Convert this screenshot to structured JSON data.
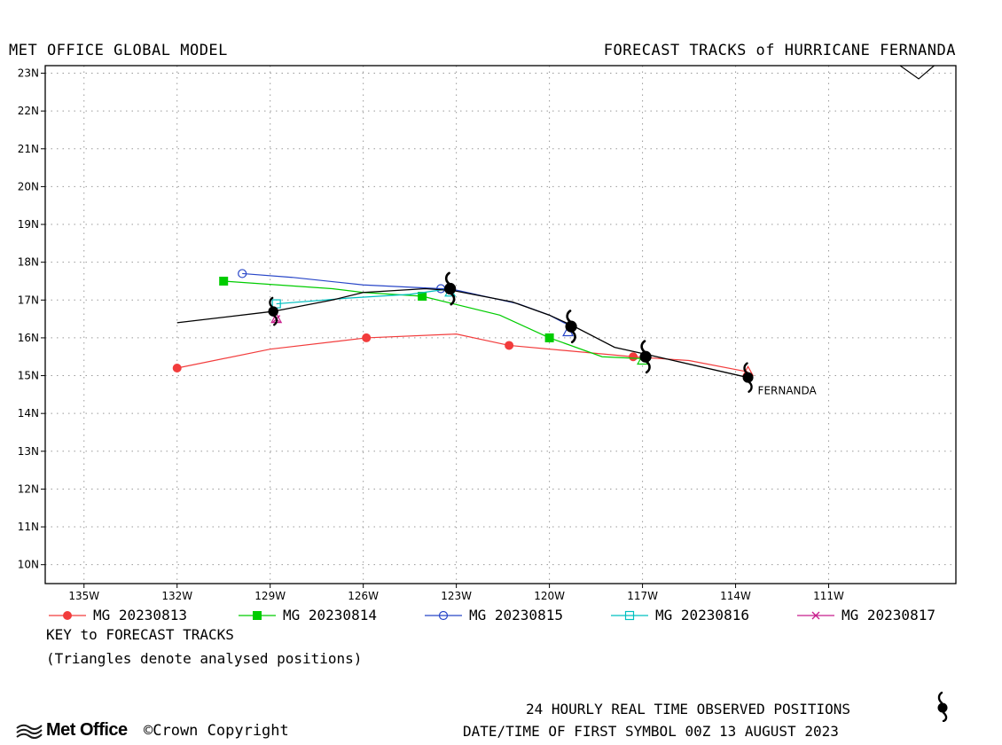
{
  "header": {
    "left": "MET OFFICE GLOBAL MODEL",
    "right": "FORECAST TRACKS of HURRICANE FERNANDA"
  },
  "map": {
    "lon_range": [
      -136.25,
      -106.9
    ],
    "lat_range": [
      9.5,
      23.2
    ],
    "grid": "dotted",
    "storm_label": "FERNANDA",
    "lon_ticks": [
      {
        "lon": -135,
        "label": "135W"
      },
      {
        "lon": -132,
        "label": "132W"
      },
      {
        "lon": -129,
        "label": "129W"
      },
      {
        "lon": -126,
        "label": "126W"
      },
      {
        "lon": -123,
        "label": "123W"
      },
      {
        "lon": -120,
        "label": "120W"
      },
      {
        "lon": -117,
        "label": "117W"
      },
      {
        "lon": -114,
        "label": "114W"
      },
      {
        "lon": -111,
        "label": "111W"
      }
    ],
    "lat_ticks": [
      {
        "lat": 10,
        "label": "10N"
      },
      {
        "lat": 11,
        "label": "11N"
      },
      {
        "lat": 12,
        "label": "12N"
      },
      {
        "lat": 13,
        "label": "13N"
      },
      {
        "lat": 14,
        "label": "14N"
      },
      {
        "lat": 15,
        "label": "15N"
      },
      {
        "lat": 16,
        "label": "16N"
      },
      {
        "lat": 17,
        "label": "17N"
      },
      {
        "lat": 18,
        "label": "18N"
      },
      {
        "lat": 19,
        "label": "19N"
      },
      {
        "lat": 20,
        "label": "20N"
      },
      {
        "lat": 21,
        "label": "21N"
      },
      {
        "lat": 22,
        "label": "22N"
      },
      {
        "lat": 23,
        "label": "23N"
      }
    ],
    "coastline": [
      [
        -108.7,
        23.2
      ],
      [
        -108.1,
        22.85
      ],
      [
        -107.6,
        23.2
      ]
    ],
    "observed_track": [
      [
        -113.6,
        14.95
      ],
      [
        -116.0,
        15.4
      ],
      [
        -116.8,
        15.55
      ],
      [
        -117.9,
        15.75
      ],
      [
        -119.2,
        16.3
      ],
      [
        -120.0,
        16.6
      ],
      [
        -121.2,
        16.95
      ],
      [
        -123.1,
        17.25
      ],
      [
        -124.0,
        17.3
      ],
      [
        -126.0,
        17.2
      ],
      [
        -127.0,
        17.0
      ],
      [
        -128.9,
        16.7
      ],
      [
        -132.0,
        16.4
      ]
    ],
    "observed_symbols": [
      [
        -113.6,
        14.95
      ],
      [
        -116.9,
        15.5
      ],
      [
        -119.3,
        16.3
      ],
      [
        -123.2,
        17.3
      ],
      [
        -128.9,
        16.7
      ]
    ],
    "observed_size_scale": [
      1,
      1.1,
      1.1,
      1.1,
      0.95
    ]
  },
  "forecasts": [
    {
      "name": "MG 20230813",
      "color": "#f23c3c",
      "marker": "filled-circle",
      "points": [
        [
          -113.6,
          15.1
        ],
        [
          -115.5,
          15.4
        ],
        [
          -117.3,
          15.5
        ],
        [
          -121.3,
          15.8
        ],
        [
          -123.0,
          16.1
        ],
        [
          -125.9,
          16.0
        ],
        [
          -129.0,
          15.7
        ],
        [
          -132.0,
          15.2
        ]
      ],
      "marked": [
        [
          -117.3,
          15.5
        ],
        [
          -121.3,
          15.8
        ],
        [
          -125.9,
          16.0
        ],
        [
          -132.0,
          15.2
        ]
      ]
    },
    {
      "name": "MG 20230814",
      "color": "#00cc00",
      "marker": "filled-square",
      "points": [
        [
          -116.9,
          15.45
        ],
        [
          -117.0,
          15.45
        ],
        [
          -118.3,
          15.5
        ],
        [
          -120.0,
          16.0
        ],
        [
          -121.6,
          16.6
        ],
        [
          -124.1,
          17.1
        ],
        [
          -126.0,
          17.2
        ],
        [
          -127.0,
          17.3
        ],
        [
          -130.5,
          17.5
        ]
      ],
      "marked": [
        [
          -120.0,
          16.0
        ],
        [
          -124.1,
          17.1
        ],
        [
          -130.5,
          17.5
        ]
      ]
    },
    {
      "name": "MG 20230815",
      "color": "#2846c8",
      "marker": "open-circle",
      "points": [
        [
          -119.3,
          16.3
        ],
        [
          -120.0,
          16.6
        ],
        [
          -121.0,
          16.9
        ],
        [
          -123.2,
          17.3
        ],
        [
          -123.5,
          17.3
        ],
        [
          -126.0,
          17.4
        ],
        [
          -128.3,
          17.6
        ],
        [
          -129.9,
          17.7
        ]
      ],
      "marked": [
        [
          -123.5,
          17.3
        ],
        [
          -129.9,
          17.7
        ]
      ]
    },
    {
      "name": "MG 20230816",
      "color": "#00c0c0",
      "marker": "open-square",
      "points": [
        [
          -123.2,
          17.3
        ],
        [
          -124.5,
          17.15
        ],
        [
          -126.5,
          17.05
        ],
        [
          -128.8,
          16.9
        ]
      ],
      "marked": [
        [
          -128.8,
          16.9
        ]
      ]
    },
    {
      "name": "MG 20230817",
      "color": "#c81e8c",
      "marker": "cross",
      "points": [
        [
          -128.9,
          16.6
        ],
        [
          -128.8,
          16.5
        ]
      ],
      "marked": [
        [
          -128.8,
          16.5
        ]
      ]
    }
  ],
  "analysed_triangles": [
    {
      "lon": -113.6,
      "lat": 15.1,
      "color": "#f23c3c"
    },
    {
      "lon": -117.0,
      "lat": 15.4,
      "color": "#00cc00"
    },
    {
      "lon": -119.4,
      "lat": 16.15,
      "color": "#2846c8"
    },
    {
      "lon": -123.2,
      "lat": 17.2,
      "color": "#00c0c0"
    },
    {
      "lon": -128.8,
      "lat": 16.5,
      "color": "#c81e8c"
    }
  ],
  "key": {
    "title": "KEY to FORECAST TRACKS",
    "note": "(Triangles denote analysed positions)"
  },
  "footer": {
    "obs_label": "24 HOURLY REAL TIME OBSERVED POSITIONS",
    "date_label": "DATE/TIME OF FIRST SYMBOL 00Z 13 AUGUST 2023",
    "brand": "Met Office",
    "copyright": "©Crown Copyright"
  }
}
